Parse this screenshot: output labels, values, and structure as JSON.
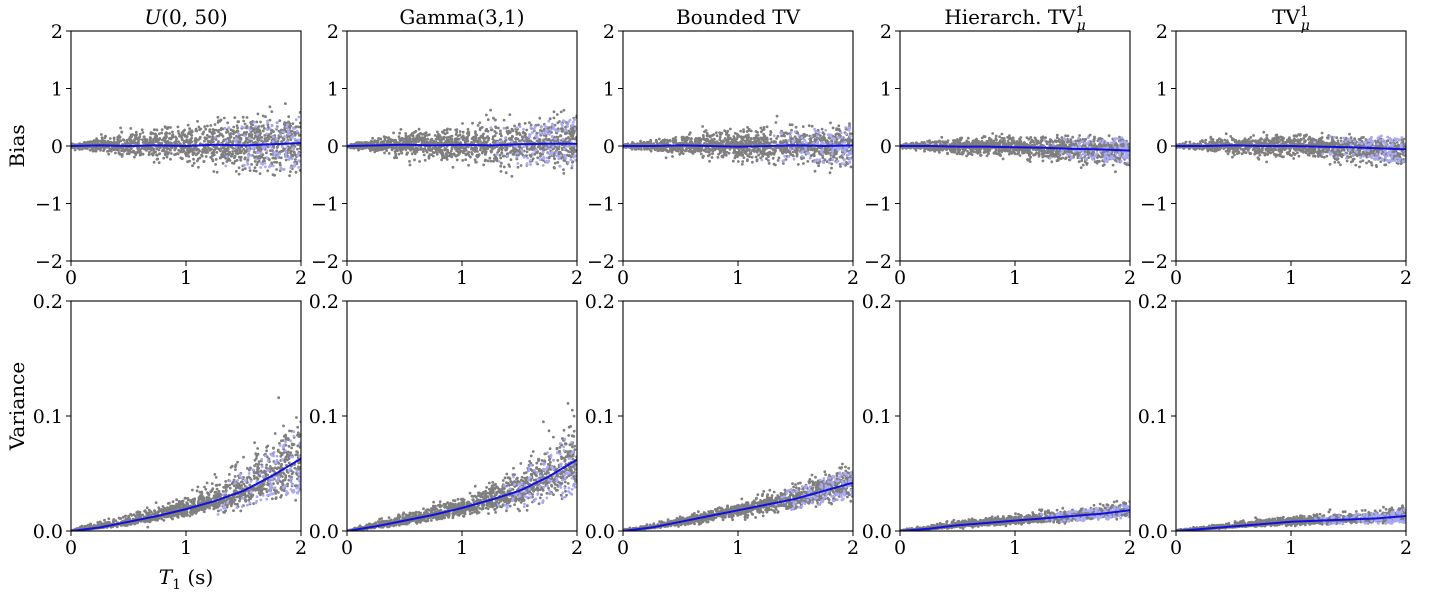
{
  "figure": {
    "row_labels": [
      "Bias",
      "Variance"
    ],
    "xlabel": "T",
    "xlabel_subscript": "1",
    "xlabel_unit": " (s)"
  },
  "colors": {
    "scatter": "#7f7f7f",
    "mean_line": "#1010e0",
    "band": "#a9a9f5",
    "axes": "#000000"
  },
  "chart_data": [
    {
      "type": "scatter",
      "title_main": "U(0, 50)",
      "title_sup": "",
      "title_sub": "",
      "row": "Bias",
      "xlabel": "T₁ (s)",
      "ylabel": "Bias",
      "xlim": [
        0,
        2
      ],
      "ylim": [
        -2,
        2
      ],
      "xticks": [
        "0",
        "1",
        "2"
      ],
      "yticks": [
        "−2",
        "−1",
        "0",
        "1",
        "2"
      ],
      "grid": false,
      "series": [
        {
          "kind": "mean_line",
          "x": [
            0,
            0.25,
            0.5,
            0.75,
            1.0,
            1.25,
            1.5,
            1.75,
            2.0
          ],
          "y": [
            0,
            0.01,
            0.0,
            0.01,
            0.0,
            0.02,
            0.01,
            0.03,
            0.05
          ]
        },
        {
          "kind": "scatter_spread",
          "x": [
            0,
            0.5,
            1.0,
            1.5,
            2.0
          ],
          "y_low": [
            -0.03,
            -0.22,
            -0.3,
            -0.38,
            -0.45
          ],
          "y_high": [
            0.03,
            0.25,
            0.35,
            0.5,
            0.6
          ]
        }
      ]
    },
    {
      "type": "scatter",
      "title_main": "Gamma(3,1)",
      "title_sup": "",
      "title_sub": "",
      "row": "Bias",
      "xlabel": "T₁ (s)",
      "ylabel": "Bias",
      "xlim": [
        0,
        2
      ],
      "ylim": [
        -2,
        2
      ],
      "xticks": [
        "0",
        "1",
        "2"
      ],
      "yticks": [
        "−2",
        "−1",
        "0",
        "1",
        "2"
      ],
      "grid": false,
      "series": [
        {
          "kind": "mean_line",
          "x": [
            0,
            0.25,
            0.5,
            0.75,
            1.0,
            1.25,
            1.5,
            1.75,
            2.0
          ],
          "y": [
            0,
            0.01,
            0.02,
            0.01,
            0.02,
            0.01,
            0.03,
            0.04,
            0.04
          ]
        },
        {
          "kind": "scatter_spread",
          "x": [
            0,
            0.5,
            1.0,
            1.5,
            2.0
          ],
          "y_low": [
            -0.03,
            -0.2,
            -0.28,
            -0.35,
            -0.4
          ],
          "y_high": [
            0.03,
            0.25,
            0.33,
            0.45,
            0.55
          ]
        }
      ]
    },
    {
      "type": "scatter",
      "title_main": "Bounded TV",
      "title_sup": "",
      "title_sub": "",
      "row": "Bias",
      "xlabel": "T₁ (s)",
      "ylabel": "Bias",
      "xlim": [
        0,
        2
      ],
      "ylim": [
        -2,
        2
      ],
      "xticks": [
        "0",
        "1",
        "2"
      ],
      "yticks": [
        "−2",
        "−1",
        "0",
        "1",
        "2"
      ],
      "grid": false,
      "series": [
        {
          "kind": "mean_line",
          "x": [
            0,
            0.25,
            0.5,
            0.75,
            1.0,
            1.25,
            1.5,
            1.75,
            2.0
          ],
          "y": [
            0,
            0.0,
            0.01,
            0.0,
            -0.01,
            0.0,
            0.01,
            0.0,
            0.01
          ]
        },
        {
          "kind": "scatter_spread",
          "x": [
            0,
            0.5,
            1.0,
            1.5,
            2.0
          ],
          "y_low": [
            -0.03,
            -0.18,
            -0.25,
            -0.3,
            -0.35
          ],
          "y_high": [
            0.03,
            0.2,
            0.27,
            0.32,
            0.38
          ]
        }
      ]
    },
    {
      "type": "scatter",
      "title_main": "Hierarch. TV",
      "title_sup": "1",
      "title_sub": "μ",
      "row": "Bias",
      "xlabel": "T₁ (s)",
      "ylabel": "Bias",
      "xlim": [
        0,
        2
      ],
      "ylim": [
        -2,
        2
      ],
      "xticks": [
        "0",
        "1",
        "2"
      ],
      "yticks": [
        "−2",
        "−1",
        "0",
        "1",
        "2"
      ],
      "grid": false,
      "series": [
        {
          "kind": "mean_line",
          "x": [
            0,
            0.25,
            0.5,
            0.75,
            1.0,
            1.25,
            1.5,
            1.75,
            2.0
          ],
          "y": [
            0,
            0.0,
            -0.01,
            -0.01,
            -0.02,
            -0.03,
            -0.05,
            -0.06,
            -0.08
          ]
        },
        {
          "kind": "scatter_spread",
          "x": [
            0,
            0.5,
            1.0,
            1.5,
            2.0
          ],
          "y_low": [
            -0.03,
            -0.15,
            -0.2,
            -0.28,
            -0.38
          ],
          "y_high": [
            0.03,
            0.15,
            0.18,
            0.15,
            0.12
          ]
        }
      ]
    },
    {
      "type": "scatter",
      "title_main": "TV",
      "title_sup": "1",
      "title_sub": "μ",
      "row": "Bias",
      "xlabel": "T₁ (s)",
      "ylabel": "Bias",
      "xlim": [
        0,
        2
      ],
      "ylim": [
        -2,
        2
      ],
      "xticks": [
        "0",
        "1",
        "2"
      ],
      "yticks": [
        "−2",
        "−1",
        "0",
        "1",
        "2"
      ],
      "grid": false,
      "series": [
        {
          "kind": "mean_line",
          "x": [
            0,
            0.25,
            0.5,
            0.75,
            1.0,
            1.25,
            1.5,
            1.75,
            2.0
          ],
          "y": [
            0,
            0.0,
            0.01,
            0.0,
            0.0,
            -0.01,
            -0.02,
            -0.04,
            -0.06
          ]
        },
        {
          "kind": "scatter_spread",
          "x": [
            0,
            0.5,
            1.0,
            1.5,
            2.0
          ],
          "y_low": [
            -0.03,
            -0.15,
            -0.2,
            -0.28,
            -0.38
          ],
          "y_high": [
            0.03,
            0.15,
            0.18,
            0.17,
            0.14
          ]
        }
      ]
    },
    {
      "type": "scatter",
      "title_main": "",
      "title_sup": "",
      "title_sub": "",
      "row": "Variance",
      "xlabel": "T₁ (s)",
      "ylabel": "Variance",
      "xlim": [
        0,
        2
      ],
      "ylim": [
        0,
        0.2
      ],
      "xticks": [
        "0",
        "1",
        "2"
      ],
      "yticks": [
        "0.0",
        "0.1",
        "0.2"
      ],
      "grid": false,
      "series": [
        {
          "kind": "mean_line",
          "x": [
            0,
            0.25,
            0.5,
            0.75,
            1.0,
            1.25,
            1.5,
            1.75,
            2.0
          ],
          "y": [
            0,
            0.003,
            0.008,
            0.013,
            0.019,
            0.026,
            0.035,
            0.048,
            0.063
          ]
        },
        {
          "kind": "scatter_spread",
          "x": [
            0,
            0.5,
            1.0,
            1.5,
            2.0
          ],
          "y_low": [
            0,
            0.005,
            0.013,
            0.022,
            0.035
          ],
          "y_high": [
            0.001,
            0.015,
            0.03,
            0.06,
            0.1
          ]
        }
      ]
    },
    {
      "type": "scatter",
      "title_main": "",
      "title_sup": "",
      "title_sub": "",
      "row": "Variance",
      "xlabel": "T₁ (s)",
      "ylabel": "Variance",
      "xlim": [
        0,
        2
      ],
      "ylim": [
        0,
        0.2
      ],
      "xticks": [
        "0",
        "1",
        "2"
      ],
      "yticks": [
        "0.0",
        "0.1",
        "0.2"
      ],
      "grid": false,
      "series": [
        {
          "kind": "mean_line",
          "x": [
            0,
            0.25,
            0.5,
            0.75,
            1.0,
            1.25,
            1.5,
            1.75,
            2.0
          ],
          "y": [
            0,
            0.004,
            0.009,
            0.014,
            0.02,
            0.027,
            0.035,
            0.047,
            0.062
          ]
        },
        {
          "kind": "scatter_spread",
          "x": [
            0,
            0.5,
            1.0,
            1.5,
            2.0
          ],
          "y_low": [
            0,
            0.005,
            0.013,
            0.022,
            0.035
          ],
          "y_high": [
            0.001,
            0.015,
            0.03,
            0.055,
            0.1
          ]
        }
      ]
    },
    {
      "type": "scatter",
      "title_main": "",
      "title_sup": "",
      "title_sub": "",
      "row": "Variance",
      "xlabel": "T₁ (s)",
      "ylabel": "Variance",
      "xlim": [
        0,
        2
      ],
      "ylim": [
        0,
        0.2
      ],
      "xticks": [
        "0",
        "1",
        "2"
      ],
      "yticks": [
        "0.0",
        "0.1",
        "0.2"
      ],
      "grid": false,
      "series": [
        {
          "kind": "mean_line",
          "x": [
            0,
            0.25,
            0.5,
            0.75,
            1.0,
            1.25,
            1.5,
            1.75,
            2.0
          ],
          "y": [
            0,
            0.003,
            0.008,
            0.013,
            0.018,
            0.023,
            0.028,
            0.035,
            0.042
          ]
        },
        {
          "kind": "scatter_spread",
          "x": [
            0,
            0.5,
            1.0,
            1.5,
            2.0
          ],
          "y_low": [
            0,
            0.005,
            0.011,
            0.019,
            0.028
          ],
          "y_high": [
            0.001,
            0.012,
            0.024,
            0.04,
            0.058
          ]
        }
      ]
    },
    {
      "type": "scatter",
      "title_main": "",
      "title_sup": "",
      "title_sub": "",
      "row": "Variance",
      "xlabel": "T₁ (s)",
      "ylabel": "Variance",
      "xlim": [
        0,
        2
      ],
      "ylim": [
        0,
        0.2
      ],
      "xticks": [
        "0",
        "1",
        "2"
      ],
      "yticks": [
        "0.0",
        "0.1",
        "0.2"
      ],
      "grid": false,
      "series": [
        {
          "kind": "mean_line",
          "x": [
            0,
            0.25,
            0.5,
            0.75,
            1.0,
            1.25,
            1.5,
            1.75,
            2.0
          ],
          "y": [
            0,
            0.002,
            0.005,
            0.007,
            0.009,
            0.011,
            0.013,
            0.015,
            0.018
          ]
        },
        {
          "kind": "scatter_spread",
          "x": [
            0,
            0.5,
            1.0,
            1.5,
            2.0
          ],
          "y_low": [
            0,
            0.003,
            0.006,
            0.009,
            0.012
          ],
          "y_high": [
            0.001,
            0.009,
            0.014,
            0.019,
            0.026
          ]
        }
      ]
    },
    {
      "type": "scatter",
      "title_main": "",
      "title_sup": "",
      "title_sub": "",
      "row": "Variance",
      "xlabel": "T₁ (s)",
      "ylabel": "Variance",
      "xlim": [
        0,
        2
      ],
      "ylim": [
        0,
        0.2
      ],
      "xticks": [
        "0",
        "1",
        "2"
      ],
      "yticks": [
        "0.0",
        "0.1",
        "0.2"
      ],
      "grid": false,
      "series": [
        {
          "kind": "mean_line",
          "x": [
            0,
            0.25,
            0.5,
            0.75,
            1.0,
            1.25,
            1.5,
            1.75,
            2.0
          ],
          "y": [
            0,
            0.002,
            0.004,
            0.006,
            0.008,
            0.009,
            0.01,
            0.011,
            0.013
          ]
        },
        {
          "kind": "scatter_spread",
          "x": [
            0,
            0.5,
            1.0,
            1.5,
            2.0
          ],
          "y_low": [
            0,
            0.003,
            0.005,
            0.007,
            0.009
          ],
          "y_high": [
            0.001,
            0.008,
            0.012,
            0.016,
            0.022
          ]
        }
      ]
    }
  ]
}
